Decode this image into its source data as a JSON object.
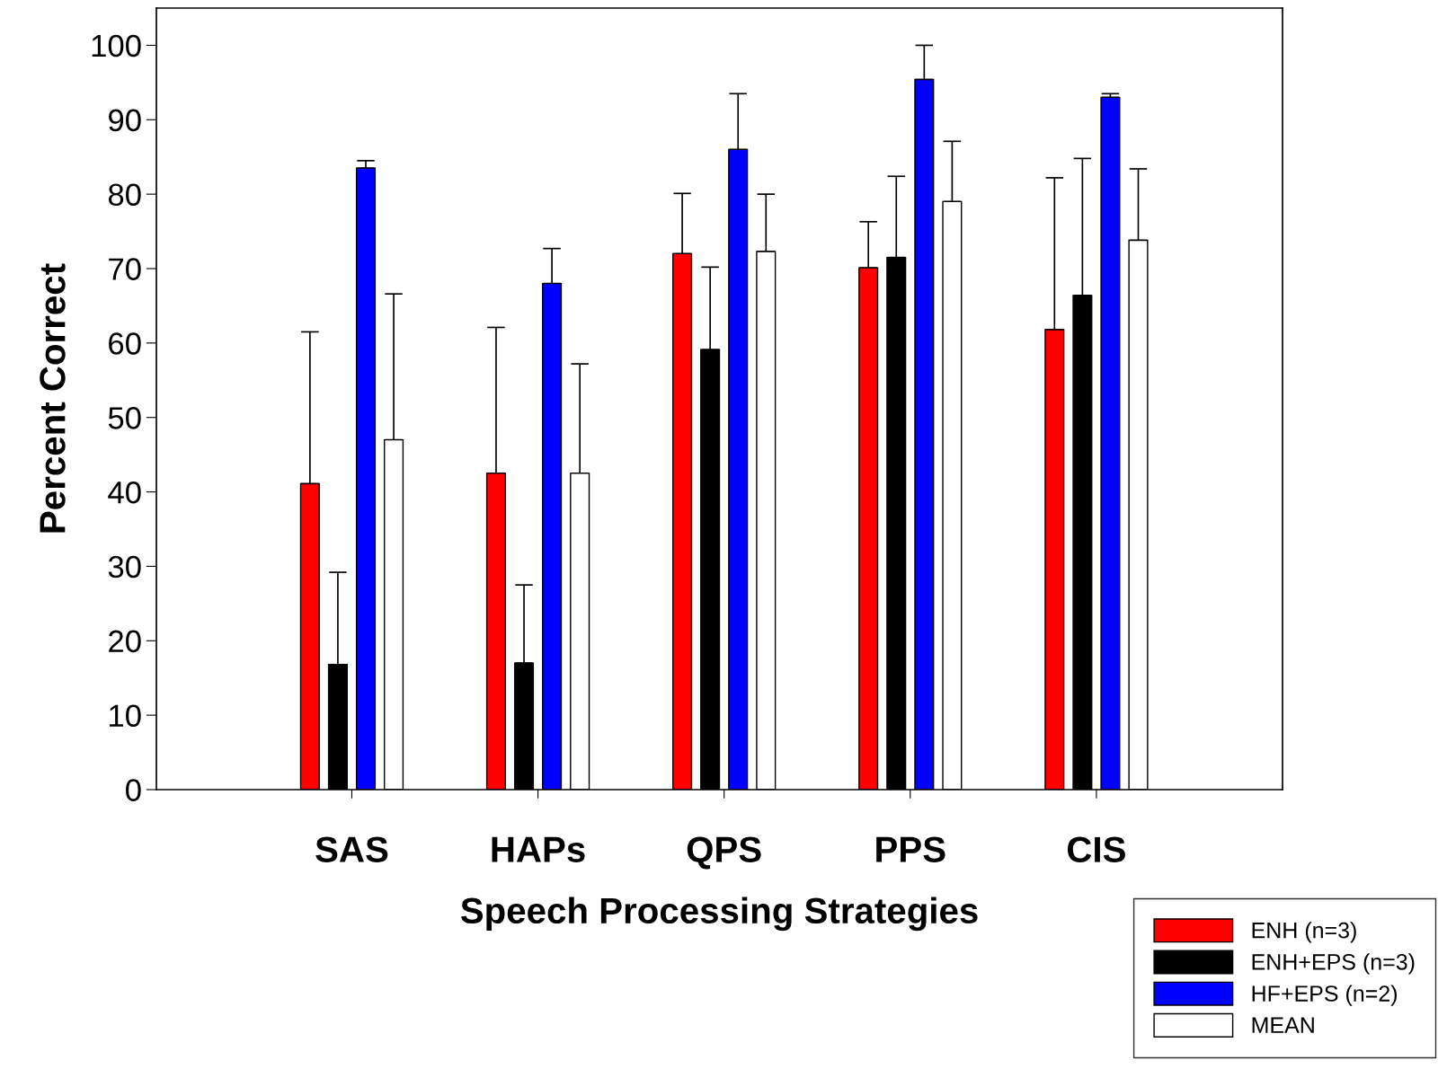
{
  "chart_data": {
    "type": "bar",
    "xlabel": "Speech Processing Strategies",
    "ylabel": "Percent Correct",
    "categories": [
      "SAS",
      "HAPs",
      "QPS",
      "PPS",
      "CIS"
    ],
    "series": [
      {
        "name": "ENH (n=3)",
        "color": "#ff0000",
        "values": [
          41.1,
          42.5,
          72.0,
          70.1,
          61.8
        ],
        "errors": [
          [
            41.1,
            61.5
          ],
          [
            42.5,
            62.1
          ],
          [
            72.0,
            80.1
          ],
          [
            70.1,
            76.3
          ],
          [
            61.8,
            82.2
          ]
        ]
      },
      {
        "name": "ENH+EPS (n=3)",
        "color": "#000000",
        "values": [
          16.8,
          17.0,
          59.1,
          71.5,
          66.4
        ],
        "errors": [
          [
            16.8,
            29.2
          ],
          [
            17.0,
            27.5
          ],
          [
            59.1,
            70.2
          ],
          [
            71.5,
            82.4
          ],
          [
            66.4,
            84.8
          ]
        ]
      },
      {
        "name": "HF+EPS (n=2)",
        "color": "#0000ff",
        "values": [
          83.5,
          68.0,
          86.0,
          95.4,
          93.0
        ],
        "errors": [
          [
            83.5,
            84.5
          ],
          [
            68.0,
            72.7
          ],
          [
            86.0,
            93.5
          ],
          [
            95.4,
            100.0
          ],
          [
            93.0,
            93.5
          ]
        ]
      },
      {
        "name": "MEAN",
        "color": "#ffffff",
        "values": [
          47.0,
          42.5,
          72.3,
          79.0,
          73.8
        ],
        "errors": [
          [
            47.0,
            66.6
          ],
          [
            42.5,
            57.2
          ],
          [
            72.3,
            80.0
          ],
          [
            79.0,
            87.1
          ],
          [
            73.8,
            83.4
          ]
        ]
      }
    ],
    "ylim": [
      0,
      105
    ],
    "yticks": [
      0,
      10,
      20,
      30,
      40,
      50,
      60,
      70,
      80,
      90,
      100
    ],
    "grid": false,
    "legend": "bottom right"
  }
}
